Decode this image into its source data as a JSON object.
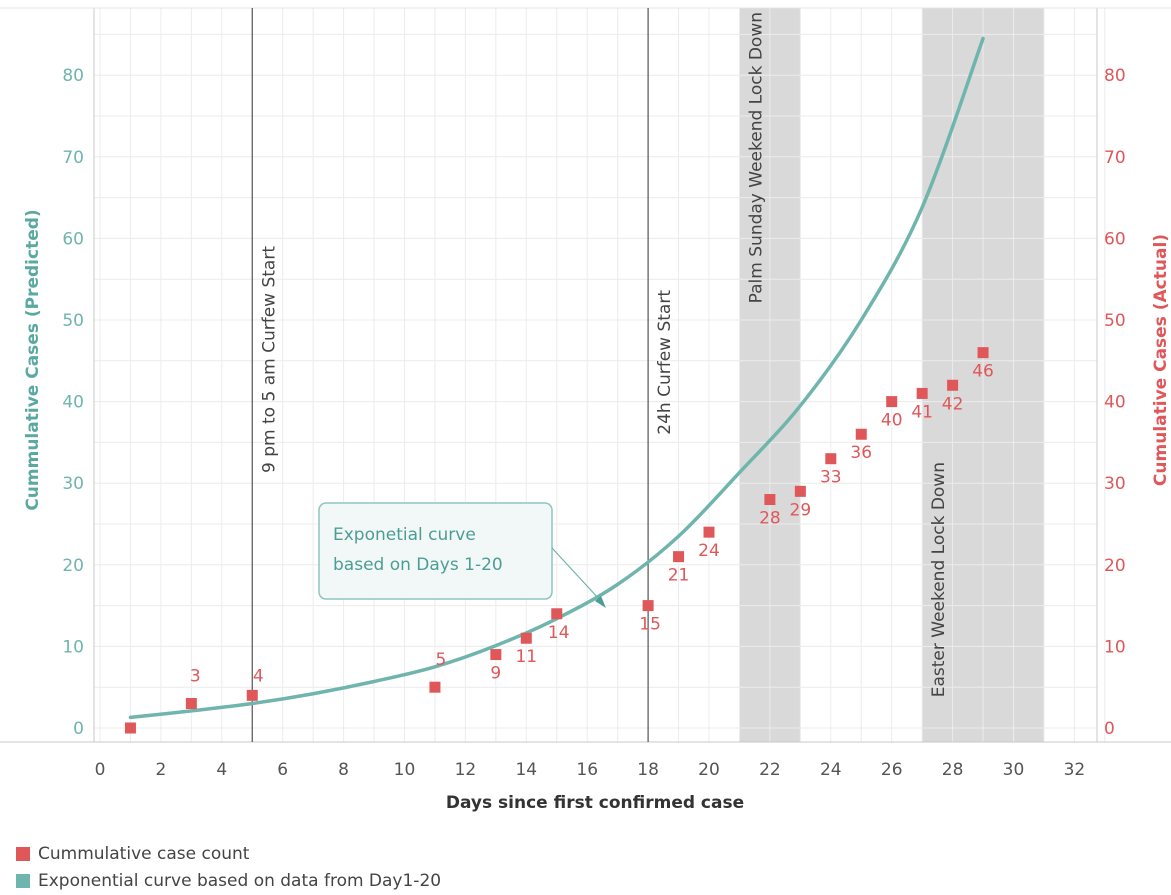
{
  "chart_data": {
    "type": "scatter",
    "xlabel": "Days since first confirmed case",
    "ylabel_left": "Cummulative Cases (Predicted)",
    "ylabel_right": "Cumulative Cases (Actual)",
    "xlim": [
      0,
      33
    ],
    "ylim": [
      0,
      88
    ],
    "x_ticks": [
      0,
      2,
      4,
      6,
      8,
      10,
      12,
      14,
      16,
      18,
      20,
      22,
      24,
      26,
      28,
      30,
      32
    ],
    "y_ticks": [
      0,
      10,
      20,
      30,
      40,
      50,
      60,
      70,
      80
    ],
    "grid": true,
    "series": [
      {
        "name": "Cummulative case count",
        "type": "scatter",
        "color": "#e0575a",
        "points": [
          {
            "x": 1,
            "y": 0,
            "label": ""
          },
          {
            "x": 3,
            "y": 3,
            "label": "3"
          },
          {
            "x": 5,
            "y": 4,
            "label": "4"
          },
          {
            "x": 11,
            "y": 5,
            "label": "5"
          },
          {
            "x": 13,
            "y": 9,
            "label": "9"
          },
          {
            "x": 14,
            "y": 11,
            "label": "11"
          },
          {
            "x": 15,
            "y": 14,
            "label": "14"
          },
          {
            "x": 18,
            "y": 15,
            "label": "15"
          },
          {
            "x": 19,
            "y": 21,
            "label": "21"
          },
          {
            "x": 20,
            "y": 24,
            "label": "24"
          },
          {
            "x": 22,
            "y": 28,
            "label": "28"
          },
          {
            "x": 23,
            "y": 29,
            "label": "29"
          },
          {
            "x": 24,
            "y": 33,
            "label": "33"
          },
          {
            "x": 25,
            "y": 36,
            "label": "36"
          },
          {
            "x": 26,
            "y": 40,
            "label": "40"
          },
          {
            "x": 27,
            "y": 41,
            "label": "41"
          },
          {
            "x": 28,
            "y": 42,
            "label": "42"
          },
          {
            "x": 29,
            "y": 46,
            "label": "46"
          }
        ]
      },
      {
        "name": "Exponential curve based on data from Day1-20",
        "type": "line",
        "color": "#6fb5ae",
        "x": [
          1,
          3,
          5,
          7,
          9,
          11,
          13,
          15,
          17,
          19,
          21,
          23,
          25,
          27,
          29
        ],
        "y": [
          1.3,
          2.1,
          3.0,
          4.2,
          5.7,
          7.5,
          10.1,
          13.4,
          17.6,
          23.5,
          31.3,
          39.5,
          50.0,
          63.8,
          84.5
        ]
      }
    ],
    "reference_lines": [
      {
        "x": 5,
        "label": "9 pm to 5 am Curfew Start"
      },
      {
        "x": 18,
        "label": "24h Curfew Start"
      }
    ],
    "shaded_bands": [
      {
        "x0": 21,
        "x1": 23,
        "label": "Palm Sunday Weekend Lock Down"
      },
      {
        "x0": 27,
        "x1": 31,
        "label": "Easter Weekend Lock Down"
      }
    ],
    "annotation": {
      "lines": [
        "Exponetial curve",
        "based on Days 1-20"
      ]
    }
  },
  "legend": {
    "items": [
      {
        "label": "Cummulative case count",
        "color": "#e0575a"
      },
      {
        "label": "Exponential curve based on data from Day1-20",
        "color": "#6fb5ae"
      }
    ]
  }
}
